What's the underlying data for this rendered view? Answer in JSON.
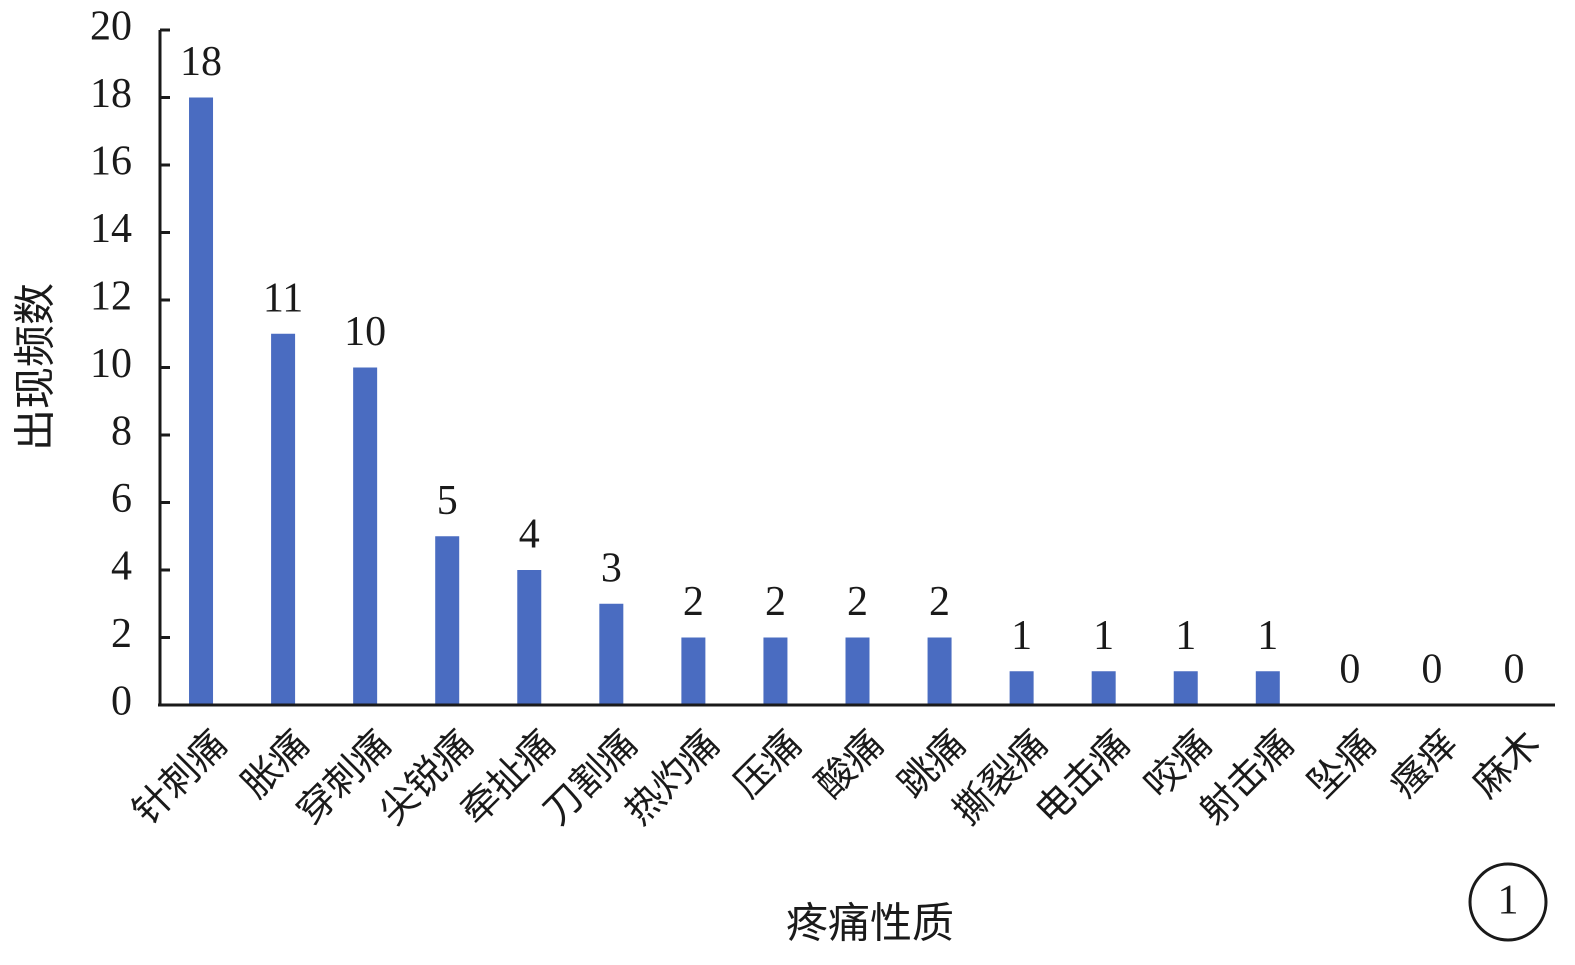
{
  "chart_data": {
    "type": "bar",
    "x_label": "疼痛性质",
    "y_label": "出现频数",
    "categories": [
      "针刺痛",
      "胀痛",
      "穿刺痛",
      "尖锐痛",
      "牵扯痛",
      "刀割痛",
      "热灼痛",
      "压痛",
      "酸痛",
      "跳痛",
      "撕裂痛",
      "电击痛",
      "咬痛",
      "射击痛",
      "坠痛",
      "瘙痒",
      "麻木"
    ],
    "values": [
      18,
      11,
      10,
      5,
      4,
      3,
      2,
      2,
      2,
      2,
      1,
      1,
      1,
      1,
      0,
      0,
      0
    ],
    "color": "#4a6cc1",
    "ylim": [
      0,
      20
    ],
    "yticks": [
      0,
      2,
      4,
      6,
      8,
      10,
      12,
      14,
      16,
      18,
      20
    ],
    "grid": false,
    "annotation": "1"
  }
}
